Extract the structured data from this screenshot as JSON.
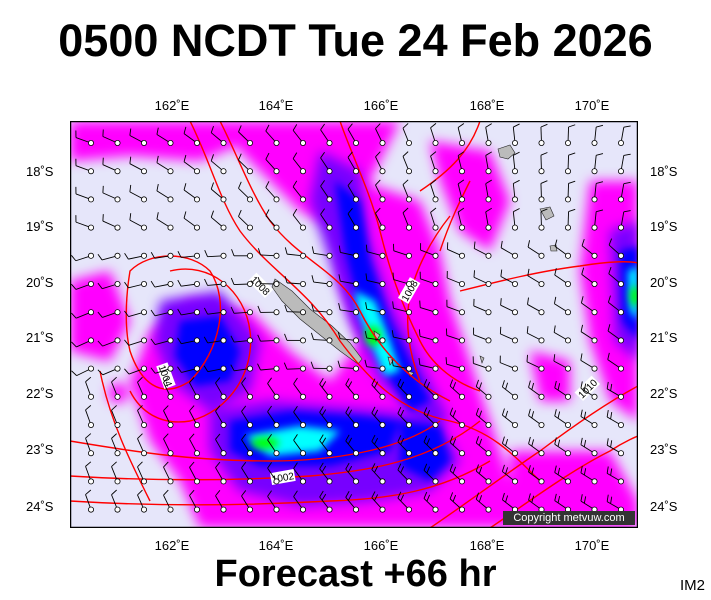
{
  "title": "0500 NCDT Tue 24 Feb 2026",
  "forecast_label": "Forecast +66 hr",
  "image_id": "IM2",
  "copyright": "Copyright metvuw.com",
  "lon_labels": [
    "162˚E",
    "164˚E",
    "166˚E",
    "168˚E",
    "170˚E"
  ],
  "lat_labels": [
    "18˚S",
    "19˚S",
    "20˚S",
    "21˚S",
    "22˚S",
    "23˚S",
    "24˚S"
  ],
  "isobar_labels": [
    "1008",
    "1008",
    "1004",
    "1002",
    "1010"
  ],
  "colors": {
    "background_field": "#e6e6fa",
    "rain_light": "#ff00ff",
    "rain_moderate": "#7700ff",
    "rain_heavy": "#0000ff",
    "rain_very_heavy": "#00ffff",
    "rain_extreme": "#00ff00",
    "isobar": "#ff0000",
    "land": "#bbbbbb"
  }
}
